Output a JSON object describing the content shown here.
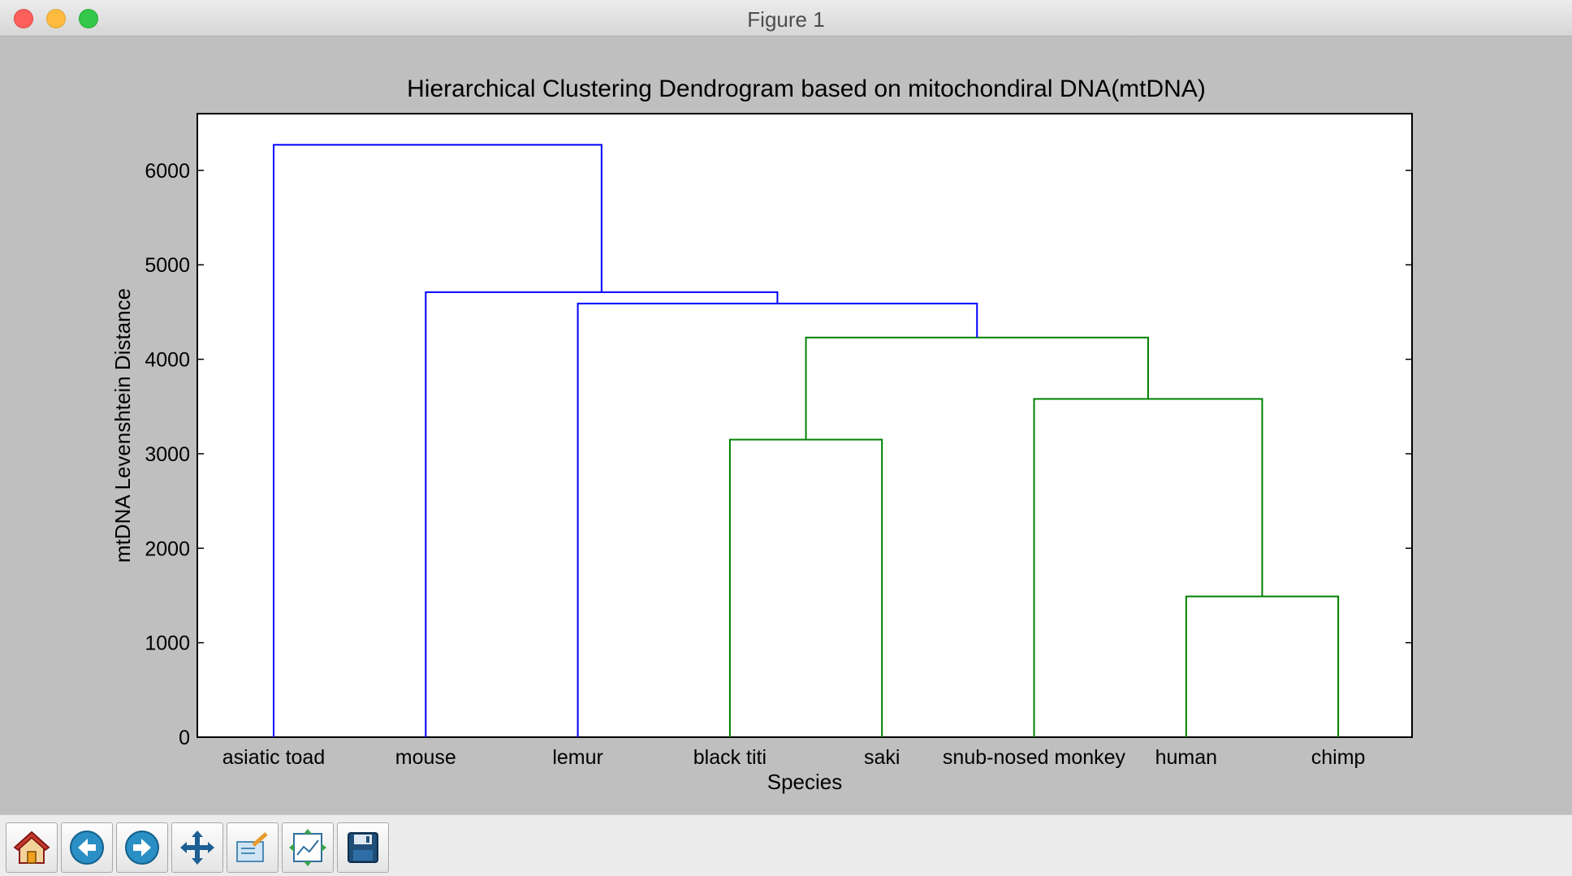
{
  "window": {
    "title": "Figure 1"
  },
  "toolbar": {
    "buttons": [
      {
        "name": "home-button",
        "icon": "home-icon"
      },
      {
        "name": "back-button",
        "icon": "arrow-left-icon"
      },
      {
        "name": "forward-button",
        "icon": "arrow-right-icon"
      },
      {
        "name": "pan-button",
        "icon": "move-arrows-icon"
      },
      {
        "name": "zoom-button",
        "icon": "zoom-rect-icon"
      },
      {
        "name": "subplots-button",
        "icon": "subplots-icon"
      },
      {
        "name": "save-button",
        "icon": "floppy-disk-icon"
      }
    ]
  },
  "colors": {
    "above_threshold": "#0000ff",
    "cluster": "#008000"
  },
  "chart_data": {
    "type": "dendrogram",
    "title": "Hierarchical Clustering Dendrogram based on mitochondiral DNA(mtDNA)",
    "xlabel": "Species",
    "ylabel": "mtDNA Levenshtein Distance",
    "ylim": [
      0,
      6600
    ],
    "yticks": [
      0,
      1000,
      2000,
      3000,
      4000,
      5000,
      6000
    ],
    "grid": false,
    "leaves": [
      "asiatic toad",
      "mouse",
      "lemur",
      "black titi",
      "saki",
      "snub-nosed monkey",
      "human",
      "chimp"
    ],
    "links": [
      {
        "left_x": 6.0,
        "left_y": 0,
        "right_x": 7.0,
        "right_y": 0,
        "height": 1490,
        "color": "green"
      },
      {
        "left_x": 5.0,
        "left_y": 0,
        "right_x": 6.5,
        "right_y": 1490,
        "height": 3580,
        "color": "green"
      },
      {
        "left_x": 3.0,
        "left_y": 0,
        "right_x": 4.0,
        "right_y": 0,
        "height": 3150,
        "color": "green"
      },
      {
        "left_x": 3.5,
        "left_y": 3150,
        "right_x": 5.75,
        "right_y": 3580,
        "height": 4230,
        "color": "green"
      },
      {
        "left_x": 2.0,
        "left_y": 0,
        "right_x": 4.625,
        "right_y": 4230,
        "height": 4590,
        "color": "blue"
      },
      {
        "left_x": 1.0,
        "left_y": 0,
        "right_x": 3.3125,
        "right_y": 4590,
        "height": 4710,
        "color": "blue"
      },
      {
        "left_x": 0.0,
        "left_y": 0,
        "right_x": 2.15625,
        "right_y": 4710,
        "height": 6270,
        "color": "blue"
      }
    ]
  }
}
